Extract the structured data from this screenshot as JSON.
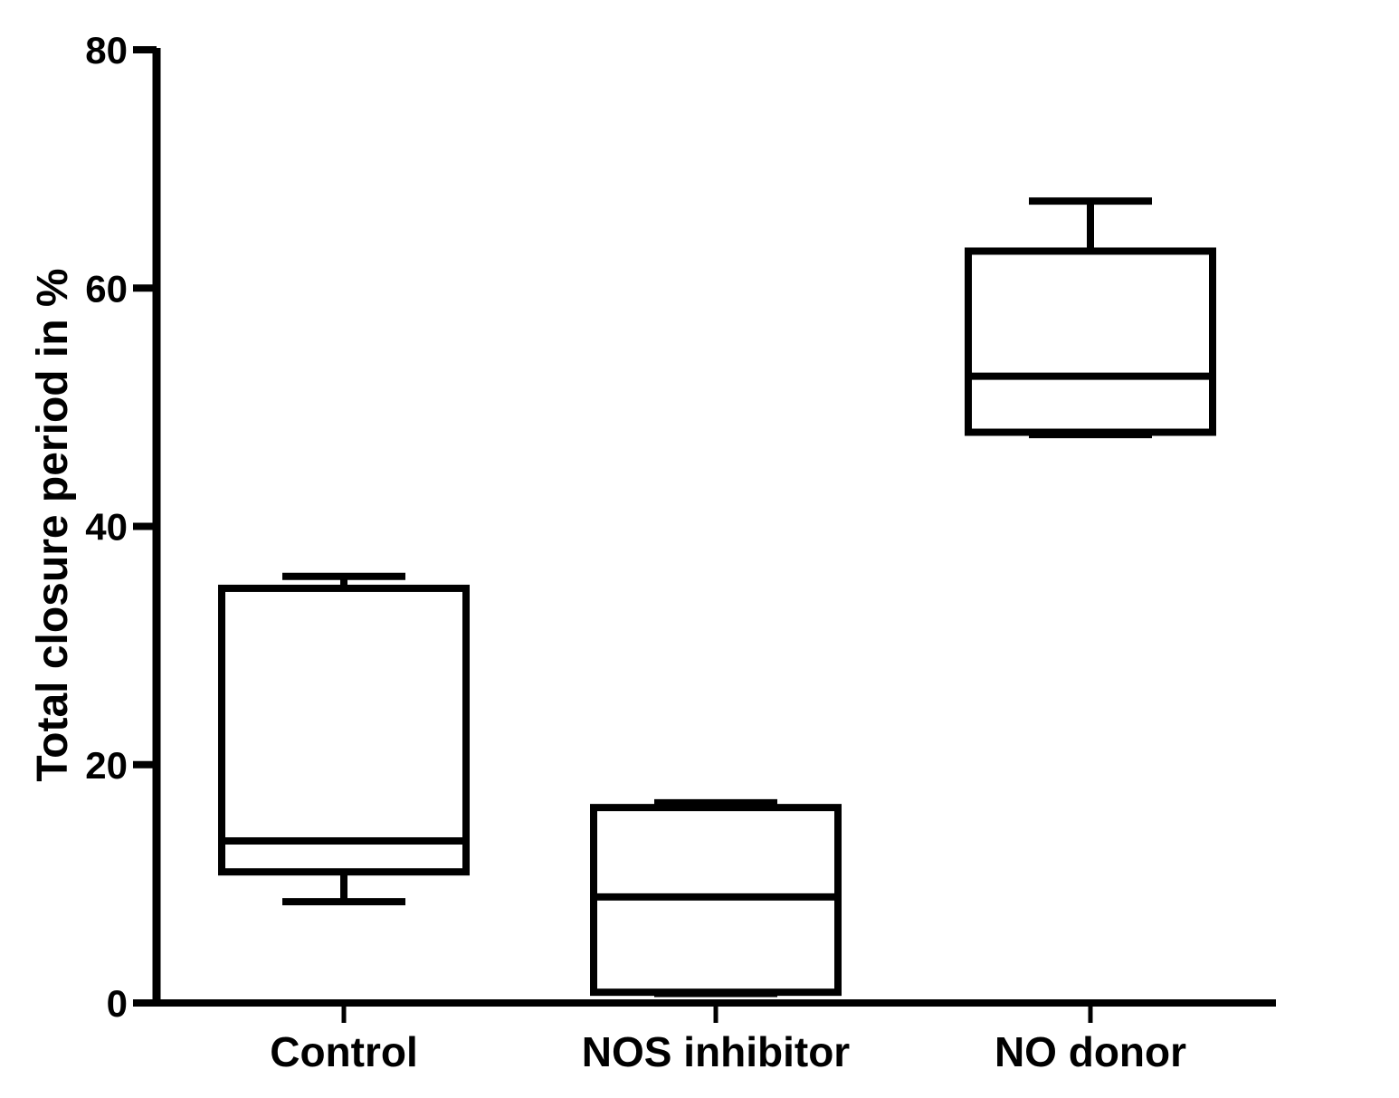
{
  "chart_data": {
    "type": "box",
    "title": "",
    "xlabel": "",
    "ylabel": "Total closure period in %",
    "ylim": [
      0,
      80
    ],
    "yticks": [
      "0",
      "20",
      "40",
      "60",
      "80"
    ],
    "grid": false,
    "categories": [
      "Control",
      "NOS inhibitor",
      "NO donor"
    ],
    "boxes": [
      {
        "category": "Control",
        "min": 8.5,
        "q1": 11.0,
        "median": 13.6,
        "q3": 34.8,
        "max": 35.8
      },
      {
        "category": "NOS inhibitor",
        "min": 0.8,
        "q1": 0.9,
        "median": 8.9,
        "q3": 16.4,
        "max": 16.8
      },
      {
        "category": "NO donor",
        "min": 47.7,
        "q1": 47.9,
        "median": 52.6,
        "q3": 63.1,
        "max": 67.3
      }
    ]
  }
}
